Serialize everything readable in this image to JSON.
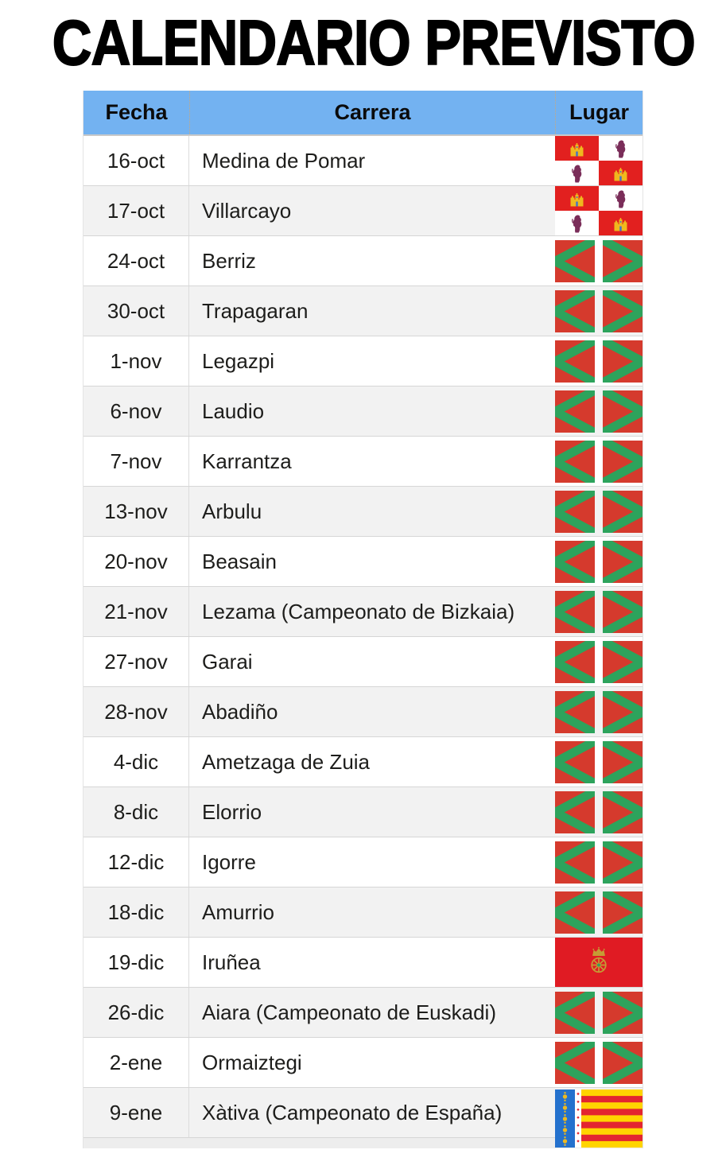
{
  "title": "CALENDARIO PREVISTO",
  "table": {
    "headers": [
      "Fecha",
      "Carrera",
      "Lugar"
    ],
    "rows": [
      {
        "date": "16-oct",
        "race": "Medina de Pomar",
        "flag": "castilla-leon",
        "flag_name": "Castilla y Leon flag"
      },
      {
        "date": "17-oct",
        "race": "Villarcayo",
        "flag": "castilla-leon",
        "flag_name": "Castilla y Leon flag"
      },
      {
        "date": "24-oct",
        "race": "Berriz",
        "flag": "basque",
        "flag_name": "Basque Country flag"
      },
      {
        "date": "30-oct",
        "race": "Trapagaran",
        "flag": "basque",
        "flag_name": "Basque Country flag"
      },
      {
        "date": "1-nov",
        "race": "Legazpi",
        "flag": "basque",
        "flag_name": "Basque Country flag"
      },
      {
        "date": "6-nov",
        "race": "Laudio",
        "flag": "basque",
        "flag_name": "Basque Country flag"
      },
      {
        "date": "7-nov",
        "race": "Karrantza",
        "flag": "basque",
        "flag_name": "Basque Country flag"
      },
      {
        "date": "13-nov",
        "race": "Arbulu",
        "flag": "basque",
        "flag_name": "Basque Country flag"
      },
      {
        "date": "20-nov",
        "race": "Beasain",
        "flag": "basque",
        "flag_name": "Basque Country flag"
      },
      {
        "date": "21-nov",
        "race": "Lezama (Campeonato de Bizkaia)",
        "flag": "basque",
        "flag_name": "Basque Country flag"
      },
      {
        "date": "27-nov",
        "race": "Garai",
        "flag": "basque",
        "flag_name": "Basque Country flag"
      },
      {
        "date": "28-nov",
        "race": "Abadiño",
        "flag": "basque",
        "flag_name": "Basque Country flag"
      },
      {
        "date": "4-dic",
        "race": "Ametzaga de Zuia",
        "flag": "basque",
        "flag_name": "Basque Country flag"
      },
      {
        "date": "8-dic",
        "race": "Elorrio",
        "flag": "basque",
        "flag_name": "Basque Country flag"
      },
      {
        "date": "12-dic",
        "race": "Igorre",
        "flag": "basque",
        "flag_name": "Basque Country flag"
      },
      {
        "date": "18-dic",
        "race": "Amurrio",
        "flag": "basque",
        "flag_name": "Basque Country flag"
      },
      {
        "date": "19-dic",
        "race": "Iruñea",
        "flag": "navarra",
        "flag_name": "Navarra flag"
      },
      {
        "date": "26-dic",
        "race": "Aiara (Campeonato de Euskadi)",
        "flag": "basque",
        "flag_name": "Basque Country flag"
      },
      {
        "date": "2-ene",
        "race": "Ormaiztegi",
        "flag": "basque",
        "flag_name": "Basque Country flag"
      },
      {
        "date": "9-ene",
        "race": "Xàtiva (Campeonato de España)",
        "flag": "valencia",
        "flag_name": "Valencian Community flag"
      }
    ]
  },
  "colors": {
    "header_bg": "#73b2f1",
    "header_divider": "#c9a87e",
    "row_alt_bg": "#f2f2f2",
    "row_border": "#d6d6d6",
    "text": "#1d1d1b",
    "eus_red": "#d53a2d",
    "eus_green": "#2da35c",
    "cyl_red": "#e2201f",
    "cyl_gold": "#efb91e",
    "cyl_purple": "#7a2d59",
    "cyl_blue": "#3f6fce",
    "nav_red": "#e01b23",
    "nav_gold": "#c59c35",
    "nav_emerald": "#3a9e5f",
    "val_blue": "#2471cd",
    "val_yellow": "#ffd400",
    "val_red": "#e32530",
    "val_gold": "#edb91f"
  }
}
